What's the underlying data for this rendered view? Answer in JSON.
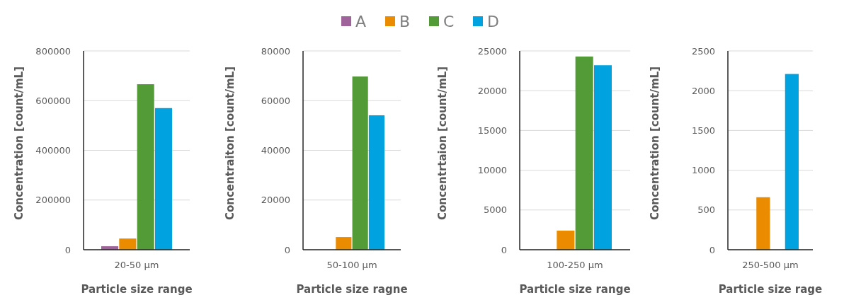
{
  "chart_data": [
    {
      "type": "bar",
      "categories": [
        "20-50 µm"
      ],
      "xlabel": "Particle size range",
      "ylabel": "Concentration [count/mL]",
      "ylim": [
        0,
        800000
      ],
      "yticks": [
        0,
        200000,
        400000,
        600000,
        800000
      ],
      "grid": "y",
      "legend": "top",
      "series": [
        {
          "name": "A",
          "color": "#a0629b",
          "values": [
            14000
          ]
        },
        {
          "name": "B",
          "color": "#ea8b00",
          "values": [
            45000
          ]
        },
        {
          "name": "C",
          "color": "#529b36",
          "values": [
            666000
          ]
        },
        {
          "name": "D",
          "color": "#00a3e0",
          "values": [
            570000
          ]
        }
      ]
    },
    {
      "type": "bar",
      "categories": [
        "50-100 µm"
      ],
      "xlabel": "Particle size ragne",
      "ylabel": "Concentraiton [count/mL]",
      "ylim": [
        0,
        80000
      ],
      "yticks": [
        0,
        20000,
        40000,
        60000,
        80000
      ],
      "grid": "y",
      "series": [
        {
          "color": "#a0629b",
          "values": [
            0
          ]
        },
        {
          "color": "#ea8b00",
          "values": [
            5100
          ]
        },
        {
          "color": "#529b36",
          "values": [
            69700
          ]
        },
        {
          "color": "#00a3e0",
          "values": [
            54100
          ]
        }
      ]
    },
    {
      "type": "bar",
      "categories": [
        "100-250 µm"
      ],
      "xlabel": "Particle size range",
      "ylabel": "Concentrtaion [count/mL]",
      "ylim": [
        0,
        25000
      ],
      "yticks": [
        0,
        5000,
        10000,
        15000,
        20000,
        25000
      ],
      "grid": "y",
      "series": [
        {
          "color": "#a0629b",
          "values": [
            0
          ]
        },
        {
          "color": "#ea8b00",
          "values": [
            2400
          ]
        },
        {
          "color": "#529b36",
          "values": [
            24300
          ]
        },
        {
          "color": "#00a3e0",
          "values": [
            23200
          ]
        }
      ]
    },
    {
      "type": "bar",
      "categories": [
        "250-500 µm"
      ],
      "xlabel": "Particle size rage",
      "ylabel": "Concentration [count/mL]",
      "ylim": [
        0,
        2500
      ],
      "yticks": [
        0,
        500,
        1000,
        1500,
        2000,
        2500
      ],
      "grid": "y",
      "series": [
        {
          "color": "#a0629b",
          "values": [
            0
          ]
        },
        {
          "color": "#ea8b00",
          "values": [
            660
          ]
        },
        {
          "color": "#529b36",
          "values": [
            0
          ]
        },
        {
          "color": "#00a3e0",
          "values": [
            2210
          ]
        }
      ]
    }
  ]
}
